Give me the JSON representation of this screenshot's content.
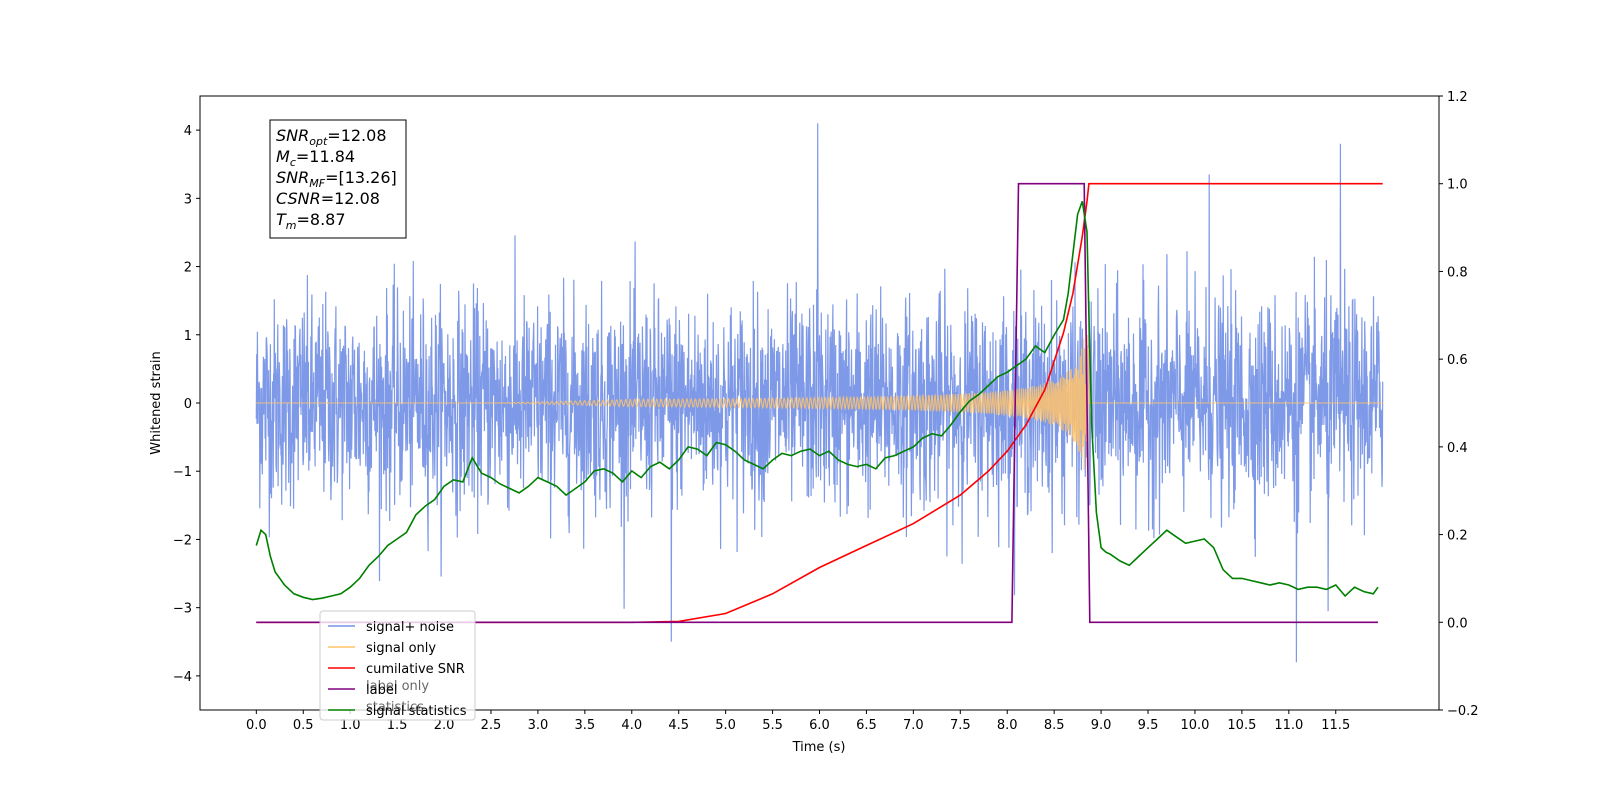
{
  "chart_data": {
    "type": "line",
    "xlabel": "Time (s)",
    "ylabel": "Whitened strain",
    "xlim": [
      -0.6,
      12.6
    ],
    "ylim": [
      -4.5,
      4.5
    ],
    "y2lim": [
      -0.2,
      1.2
    ],
    "x_ticks": [
      "0.0",
      "0.5",
      "1.0",
      "1.5",
      "2.0",
      "2.5",
      "3.0",
      "3.5",
      "4.0",
      "4.5",
      "5.0",
      "5.5",
      "6.0",
      "6.5",
      "7.0",
      "7.5",
      "8.0",
      "8.5",
      "9.0",
      "9.5",
      "10.0",
      "10.5",
      "11.0",
      "11.5"
    ],
    "y_ticks": [
      "4",
      "3",
      "2",
      "1",
      "0",
      "−1",
      "−2",
      "−3",
      "−4"
    ],
    "y2_ticks": [
      "1.2",
      "1.0",
      "0.8",
      "0.6",
      "0.4",
      "0.2",
      "0.0",
      "−0.2"
    ],
    "annotation": {
      "lines": [
        {
          "main": "SNR",
          "sub": "opt",
          "rest": "=12.08"
        },
        {
          "main": "M",
          "sub": "c",
          "rest": "=11.84"
        },
        {
          "main": "SNR",
          "sub": "MF",
          "rest": "=[13.26]"
        },
        {
          "main": "CSNR",
          "sub": "",
          "rest": "=12.08"
        },
        {
          "main": "T",
          "sub": "m",
          "rest": "=8.87"
        }
      ]
    },
    "legend": {
      "placement": "lower-left",
      "entries": [
        {
          "label": "signal+ noise",
          "color": "#7793e6"
        },
        {
          "label": "signal only",
          "color": "#ffc36b"
        },
        {
          "label": "cumilative SNR",
          "color": "#ff0000"
        },
        {
          "label": "label",
          "color": "#800080"
        },
        {
          "label": "signal statistics",
          "color": "#008000"
        }
      ],
      "hidden_labels": [
        "label only",
        "statistics"
      ]
    },
    "series": [
      {
        "name": "signal+ noise",
        "axis": "left",
        "color": "#7793e6",
        "kind": "noise",
        "t_start": 0.0,
        "t_end": 12.0,
        "amplitude_std": 0.75,
        "spikes": [
          {
            "x": 5.98,
            "y": 4.1
          },
          {
            "x": 11.55,
            "y": 3.8
          },
          {
            "x": 10.15,
            "y": 3.35
          },
          {
            "x": 4.42,
            "y": -3.5
          },
          {
            "x": 11.08,
            "y": -3.8
          },
          {
            "x": 11.42,
            "y": -3.05
          }
        ]
      },
      {
        "name": "signal only",
        "axis": "left",
        "color": "#ffc36b",
        "kind": "chirp",
        "t_start": 0.0,
        "t_end": 12.0,
        "merger": 8.87
      },
      {
        "name": "cumilative SNR",
        "axis": "right",
        "color": "#ff0000",
        "x": [
          0.0,
          4.0,
          4.5,
          5.0,
          5.5,
          6.0,
          6.5,
          7.0,
          7.5,
          7.8,
          8.0,
          8.2,
          8.4,
          8.6,
          8.7,
          8.8,
          8.85,
          8.87,
          8.9,
          12.0
        ],
        "y": [
          0.0,
          0.0,
          0.002,
          0.02,
          0.065,
          0.125,
          0.175,
          0.225,
          0.29,
          0.345,
          0.39,
          0.45,
          0.53,
          0.66,
          0.75,
          0.88,
          0.96,
          1.0,
          1.0,
          1.0
        ]
      },
      {
        "name": "label",
        "axis": "right",
        "color": "#800080",
        "x": [
          0.0,
          8.05,
          8.12,
          8.82,
          8.88,
          11.95
        ],
        "y": [
          0.0,
          0.0,
          1.0,
          1.0,
          0.0,
          0.0
        ]
      },
      {
        "name": "signal statistics",
        "axis": "right",
        "color": "#008000",
        "x": [
          0.0,
          0.05,
          0.1,
          0.15,
          0.2,
          0.3,
          0.4,
          0.5,
          0.6,
          0.7,
          0.8,
          0.9,
          1.0,
          1.1,
          1.2,
          1.3,
          1.4,
          1.5,
          1.6,
          1.7,
          1.8,
          1.9,
          2.0,
          2.1,
          2.2,
          2.3,
          2.4,
          2.5,
          2.6,
          2.7,
          2.8,
          2.9,
          3.0,
          3.1,
          3.2,
          3.3,
          3.4,
          3.5,
          3.6,
          3.7,
          3.8,
          3.9,
          4.0,
          4.1,
          4.2,
          4.3,
          4.4,
          4.5,
          4.6,
          4.7,
          4.8,
          4.9,
          5.0,
          5.1,
          5.2,
          5.3,
          5.4,
          5.5,
          5.6,
          5.7,
          5.8,
          5.9,
          6.0,
          6.1,
          6.2,
          6.3,
          6.4,
          6.5,
          6.6,
          6.7,
          6.8,
          6.9,
          7.0,
          7.1,
          7.2,
          7.3,
          7.4,
          7.5,
          7.6,
          7.7,
          7.8,
          7.9,
          8.0,
          8.1,
          8.2,
          8.3,
          8.4,
          8.5,
          8.6,
          8.65,
          8.7,
          8.75,
          8.8,
          8.85,
          8.87,
          8.9,
          8.95,
          9.0,
          9.05,
          9.1,
          9.2,
          9.3,
          9.4,
          9.5,
          9.6,
          9.7,
          9.8,
          9.9,
          10.0,
          10.1,
          10.2,
          10.3,
          10.4,
          10.5,
          10.6,
          10.7,
          10.8,
          10.9,
          11.0,
          11.1,
          11.2,
          11.3,
          11.4,
          11.5,
          11.6,
          11.7,
          11.8,
          11.9,
          11.95
        ],
        "y": [
          0.175,
          0.21,
          0.2,
          0.15,
          0.115,
          0.085,
          0.065,
          0.057,
          0.052,
          0.055,
          0.06,
          0.065,
          0.08,
          0.1,
          0.13,
          0.15,
          0.175,
          0.19,
          0.205,
          0.245,
          0.265,
          0.28,
          0.31,
          0.325,
          0.32,
          0.375,
          0.34,
          0.33,
          0.315,
          0.305,
          0.295,
          0.31,
          0.33,
          0.32,
          0.31,
          0.29,
          0.305,
          0.32,
          0.345,
          0.35,
          0.34,
          0.32,
          0.345,
          0.33,
          0.355,
          0.365,
          0.35,
          0.37,
          0.4,
          0.395,
          0.38,
          0.41,
          0.405,
          0.39,
          0.37,
          0.36,
          0.35,
          0.37,
          0.385,
          0.38,
          0.39,
          0.395,
          0.38,
          0.39,
          0.37,
          0.36,
          0.355,
          0.36,
          0.35,
          0.375,
          0.38,
          0.39,
          0.4,
          0.42,
          0.43,
          0.425,
          0.45,
          0.48,
          0.505,
          0.52,
          0.54,
          0.56,
          0.57,
          0.585,
          0.6,
          0.63,
          0.615,
          0.655,
          0.69,
          0.75,
          0.84,
          0.93,
          0.96,
          0.89,
          0.7,
          0.45,
          0.25,
          0.17,
          0.16,
          0.155,
          0.14,
          0.13,
          0.15,
          0.17,
          0.19,
          0.21,
          0.195,
          0.18,
          0.185,
          0.19,
          0.17,
          0.12,
          0.1,
          0.1,
          0.095,
          0.09,
          0.085,
          0.09,
          0.085,
          0.075,
          0.08,
          0.08,
          0.075,
          0.085,
          0.06,
          0.08,
          0.07,
          0.065,
          0.08
        ]
      }
    ]
  }
}
